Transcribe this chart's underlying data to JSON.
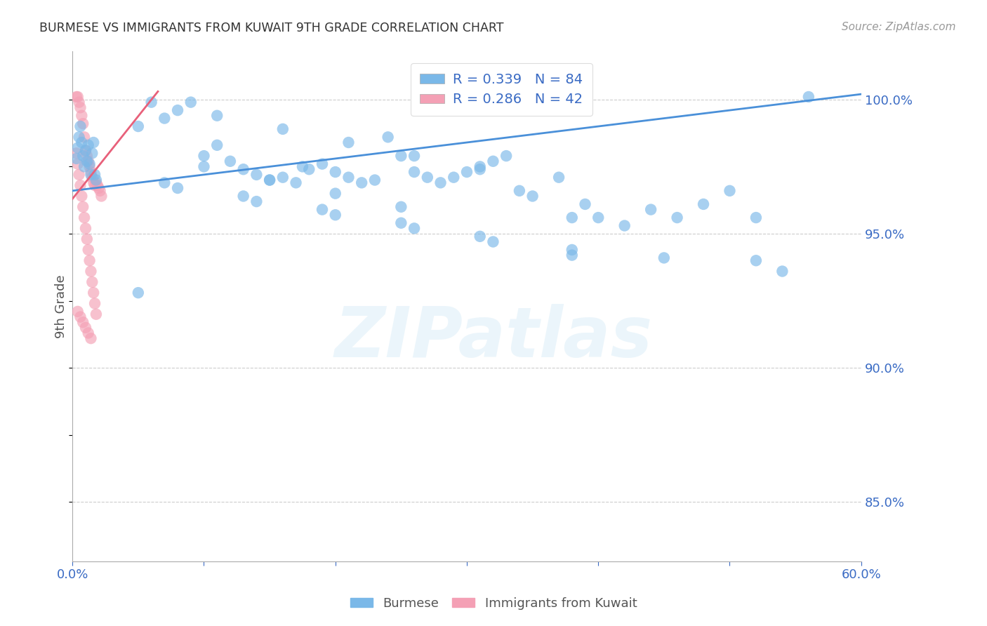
{
  "title": "BURMESE VS IMMIGRANTS FROM KUWAIT 9TH GRADE CORRELATION CHART",
  "source": "Source: ZipAtlas.com",
  "ylabel": "9th Grade",
  "ytick_labels": [
    "85.0%",
    "90.0%",
    "95.0%",
    "100.0%"
  ],
  "ytick_values": [
    0.85,
    0.9,
    0.95,
    1.0
  ],
  "xmin": 0.0,
  "xmax": 0.6,
  "ymin": 0.828,
  "ymax": 1.018,
  "legend_blue_r": "R = 0.339",
  "legend_blue_n": "N = 84",
  "legend_pink_r": "R = 0.286",
  "legend_pink_n": "N = 42",
  "blue_color": "#7ab8e8",
  "blue_line_color": "#4a90d9",
  "pink_color": "#f4a0b5",
  "pink_line_color": "#e8607a",
  "blue_line_x": [
    0.0,
    0.6
  ],
  "blue_line_y": [
    0.966,
    1.002
  ],
  "pink_line_x": [
    0.0,
    0.065
  ],
  "pink_line_y": [
    0.963,
    1.003
  ],
  "blue_x": [
    0.003,
    0.004,
    0.005,
    0.006,
    0.007,
    0.008,
    0.009,
    0.01,
    0.011,
    0.012,
    0.013,
    0.014,
    0.015,
    0.016,
    0.017,
    0.018,
    0.05,
    0.07,
    0.08,
    0.09,
    0.1,
    0.11,
    0.12,
    0.13,
    0.14,
    0.15,
    0.16,
    0.17,
    0.175,
    0.18,
    0.19,
    0.2,
    0.21,
    0.22,
    0.23,
    0.24,
    0.25,
    0.26,
    0.27,
    0.28,
    0.29,
    0.3,
    0.31,
    0.32,
    0.33,
    0.34,
    0.35,
    0.37,
    0.38,
    0.39,
    0.4,
    0.42,
    0.44,
    0.46,
    0.48,
    0.5,
    0.52,
    0.54,
    0.56,
    0.05,
    0.1,
    0.15,
    0.2,
    0.25,
    0.06,
    0.11,
    0.16,
    0.21,
    0.26,
    0.31,
    0.07,
    0.13,
    0.19,
    0.25,
    0.31,
    0.38,
    0.08,
    0.14,
    0.2,
    0.26,
    0.32,
    0.38,
    0.45,
    0.52
  ],
  "blue_y": [
    0.978,
    0.982,
    0.986,
    0.99,
    0.984,
    0.979,
    0.975,
    0.981,
    0.977,
    0.983,
    0.976,
    0.972,
    0.98,
    0.984,
    0.972,
    0.97,
    0.99,
    0.993,
    0.996,
    0.999,
    0.979,
    0.983,
    0.977,
    0.974,
    0.972,
    0.97,
    0.971,
    0.969,
    0.975,
    0.974,
    0.976,
    0.973,
    0.971,
    0.969,
    0.97,
    0.986,
    0.979,
    0.973,
    0.971,
    0.969,
    0.971,
    0.973,
    0.975,
    0.977,
    0.979,
    0.966,
    0.964,
    0.971,
    0.956,
    0.961,
    0.956,
    0.953,
    0.959,
    0.956,
    0.961,
    0.966,
    0.956,
    0.936,
    1.001,
    0.928,
    0.975,
    0.97,
    0.965,
    0.96,
    0.999,
    0.994,
    0.989,
    0.984,
    0.979,
    0.974,
    0.969,
    0.964,
    0.959,
    0.954,
    0.949,
    0.944,
    0.967,
    0.962,
    0.957,
    0.952,
    0.947,
    0.942,
    0.941,
    0.94
  ],
  "pink_x": [
    0.003,
    0.004,
    0.005,
    0.006,
    0.007,
    0.008,
    0.009,
    0.01,
    0.011,
    0.012,
    0.013,
    0.014,
    0.015,
    0.016,
    0.017,
    0.018,
    0.019,
    0.02,
    0.021,
    0.022,
    0.003,
    0.004,
    0.005,
    0.006,
    0.007,
    0.008,
    0.009,
    0.01,
    0.011,
    0.012,
    0.013,
    0.014,
    0.015,
    0.016,
    0.017,
    0.018,
    0.004,
    0.006,
    0.008,
    0.01,
    0.012,
    0.014
  ],
  "pink_y": [
    1.001,
    1.001,
    0.999,
    0.997,
    0.994,
    0.991,
    0.986,
    0.981,
    0.979,
    0.977,
    0.975,
    0.973,
    0.971,
    0.969,
    0.968,
    0.969,
    0.968,
    0.967,
    0.966,
    0.964,
    0.98,
    0.976,
    0.972,
    0.968,
    0.964,
    0.96,
    0.956,
    0.952,
    0.948,
    0.944,
    0.94,
    0.936,
    0.932,
    0.928,
    0.924,
    0.92,
    0.921,
    0.919,
    0.917,
    0.915,
    0.913,
    0.911
  ]
}
